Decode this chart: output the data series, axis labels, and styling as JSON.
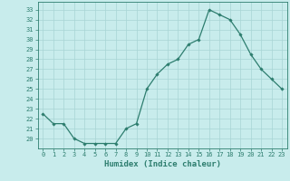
{
  "x": [
    0,
    1,
    2,
    3,
    4,
    5,
    6,
    7,
    8,
    9,
    10,
    11,
    12,
    13,
    14,
    15,
    16,
    17,
    18,
    19,
    20,
    21,
    22,
    23
  ],
  "y": [
    22.5,
    21.5,
    21.5,
    20.0,
    19.5,
    19.5,
    19.5,
    19.5,
    21.0,
    21.5,
    25.0,
    26.5,
    27.5,
    28.0,
    29.5,
    30.0,
    33.0,
    32.5,
    32.0,
    30.5,
    28.5,
    27.0,
    26.0,
    25.0
  ],
  "line_color": "#2d7d6e",
  "marker": "D",
  "marker_size": 1.8,
  "bg_color": "#c8ecec",
  "grid_color": "#a8d4d4",
  "xlabel": "Humidex (Indice chaleur)",
  "xlim": [
    -0.5,
    23.5
  ],
  "ylim": [
    19.0,
    33.8
  ],
  "yticks": [
    20,
    21,
    22,
    23,
    24,
    25,
    26,
    27,
    28,
    29,
    30,
    31,
    32,
    33
  ],
  "xticks": [
    0,
    1,
    2,
    3,
    4,
    5,
    6,
    7,
    8,
    9,
    10,
    11,
    12,
    13,
    14,
    15,
    16,
    17,
    18,
    19,
    20,
    21,
    22,
    23
  ],
  "tick_color": "#2d7d6e",
  "axis_color": "#2d7d6e",
  "xlabel_fontsize": 6.5,
  "tick_fontsize": 5.0,
  "linewidth": 0.9
}
